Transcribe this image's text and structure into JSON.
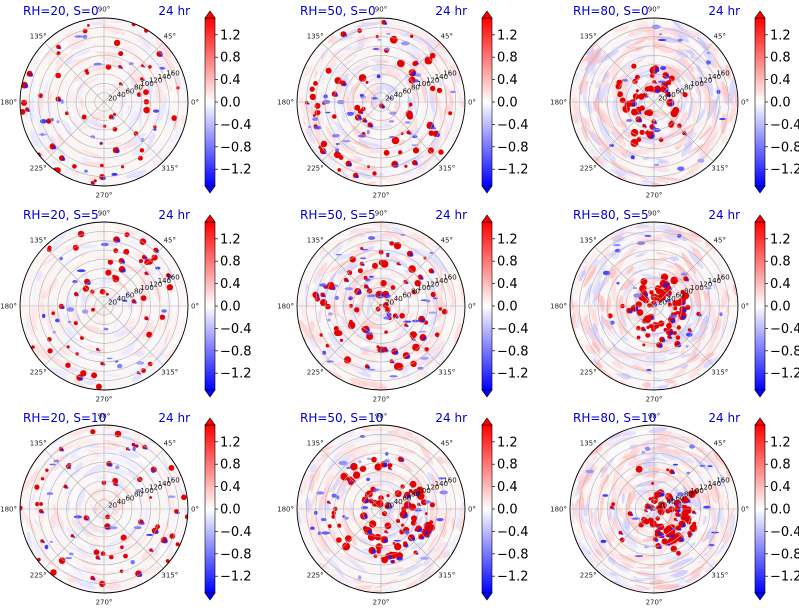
{
  "chart_data": {
    "type": "heatmap",
    "layout": {
      "rows": 3,
      "cols": 3,
      "projection": "polar"
    },
    "panels": [
      {
        "title": "RH=20, S=0",
        "time_label": "24 hr",
        "rh": 20,
        "s": 0
      },
      {
        "title": "RH=50, S=0",
        "time_label": "24 hr",
        "rh": 50,
        "s": 0
      },
      {
        "title": "RH=80, S=0",
        "time_label": "24 hr",
        "rh": 80,
        "s": 0
      },
      {
        "title": "RH=20, S=5",
        "time_label": "24 hr",
        "rh": 20,
        "s": 5
      },
      {
        "title": "RH=50, S=5",
        "time_label": "24 hr",
        "rh": 50,
        "s": 5
      },
      {
        "title": "RH=80, S=5",
        "time_label": "24 hr",
        "rh": 80,
        "s": 5
      },
      {
        "title": "RH=20, S=10",
        "time_label": "24 hr",
        "rh": 20,
        "s": 10
      },
      {
        "title": "RH=50, S=10",
        "time_label": "24 hr",
        "rh": 50,
        "s": 10
      },
      {
        "title": "RH=80, S=10",
        "time_label": "24 hr",
        "rh": 80,
        "s": 10
      }
    ],
    "theta_ticks": [
      {
        "deg": 0,
        "label": "0°"
      },
      {
        "deg": 45,
        "label": "45°"
      },
      {
        "deg": 90,
        "label": "90°"
      },
      {
        "deg": 135,
        "label": "135°"
      },
      {
        "deg": 180,
        "label": "180°"
      },
      {
        "deg": 225,
        "label": "225°"
      },
      {
        "deg": 270,
        "label": "270°"
      },
      {
        "deg": 315,
        "label": "315°"
      }
    ],
    "r_ticks": [
      20,
      40,
      60,
      80,
      100,
      120,
      140,
      160
    ],
    "r_max": 180,
    "colorbar": {
      "ticks": [
        1.2,
        0.8,
        0.4,
        0.0,
        -0.4,
        -0.8,
        -1.2
      ],
      "tick_labels": [
        "1.2",
        "0.8",
        "0.4",
        "0.0",
        "−0.4",
        "−0.8",
        "−1.2"
      ],
      "vmin": -1.5,
      "vmax": 1.5,
      "colormap": "bwr",
      "extend": "both",
      "colors": {
        "low": "#0000ff",
        "mid": "#ffffff",
        "high": "#ff0000"
      }
    }
  }
}
